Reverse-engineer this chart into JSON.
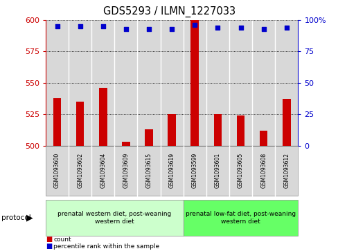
{
  "title": "GDS5293 / ILMN_1227033",
  "samples": [
    "GSM1093600",
    "GSM1093602",
    "GSM1093604",
    "GSM1093609",
    "GSM1093615",
    "GSM1093619",
    "GSM1093599",
    "GSM1093601",
    "GSM1093605",
    "GSM1093608",
    "GSM1093612"
  ],
  "bar_values": [
    538,
    535,
    546,
    503,
    513,
    525,
    600,
    525,
    524,
    512,
    537
  ],
  "percentile_values": [
    95,
    95,
    95,
    93,
    93,
    93,
    96,
    94,
    94,
    93,
    94
  ],
  "bar_color": "#cc0000",
  "dot_color": "#0000cc",
  "ylim_left": [
    500,
    600
  ],
  "ylim_right": [
    0,
    100
  ],
  "yticks_left": [
    500,
    525,
    550,
    575,
    600
  ],
  "yticks_right": [
    0,
    25,
    50,
    75,
    100
  ],
  "groups": [
    {
      "label": "prenatal western diet, post-weaning\nwestern diet",
      "n_bars": 6,
      "color": "#ccffcc"
    },
    {
      "label": "prenatal low-fat diet, post-weaning\nwestern diet",
      "n_bars": 5,
      "color": "#66ff66"
    }
  ],
  "protocol_label": "protocol",
  "legend_count_label": "count",
  "legend_percentile_label": "percentile rank within the sample",
  "bar_background": "#d8d8d8",
  "col_separator_color": "#ffffff",
  "spine_color": "#000000"
}
